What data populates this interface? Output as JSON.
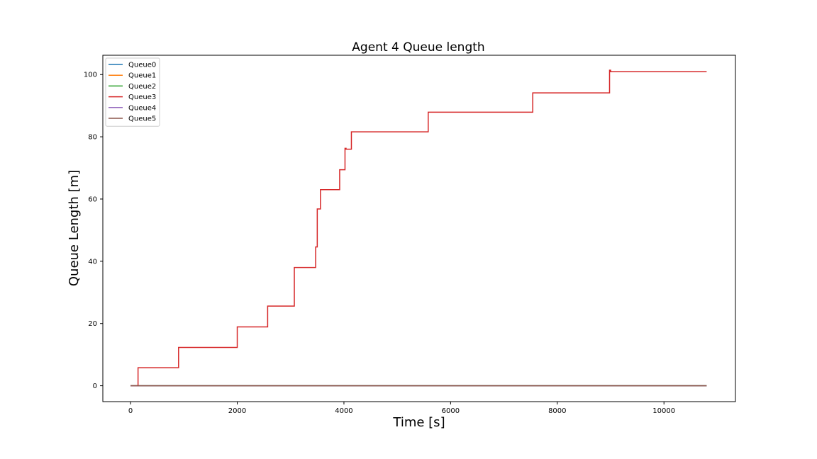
{
  "chart_data": {
    "type": "line",
    "title": "Agent 4 Queue length",
    "xlabel": "Time [s]",
    "ylabel": "Queue Length [m]",
    "xlim": [
      -520,
      11340
    ],
    "ylim": [
      -5.1,
      106.2
    ],
    "xticks": [
      0,
      2000,
      4000,
      6000,
      8000,
      10000
    ],
    "yticks": [
      0,
      20,
      40,
      60,
      80,
      100
    ],
    "grid": false,
    "legend_position": "top-left",
    "series": [
      {
        "name": "Queue0",
        "color": "#1f77b4",
        "x": [
          0,
          10800
        ],
        "y": [
          0,
          0
        ]
      },
      {
        "name": "Queue1",
        "color": "#ff7f0e",
        "x": [
          0,
          10800
        ],
        "y": [
          0,
          0
        ]
      },
      {
        "name": "Queue2",
        "color": "#2ca02c",
        "x": [
          0,
          10800
        ],
        "y": [
          0,
          0
        ]
      },
      {
        "name": "Queue3",
        "color": "#d62728",
        "x": [
          0,
          140,
          140,
          900,
          900,
          2000,
          2000,
          2570,
          2570,
          3070,
          3070,
          3470,
          3470,
          3500,
          3500,
          3560,
          3560,
          3920,
          3920,
          4020,
          4020,
          4040,
          4040,
          4140,
          4140,
          5580,
          5580,
          7540,
          7540,
          8980,
          8980,
          9000,
          9000,
          10800
        ],
        "y": [
          0,
          0,
          5.8,
          5.8,
          12.3,
          12.3,
          18.9,
          18.9,
          25.6,
          25.6,
          38.0,
          38.0,
          44.6,
          44.6,
          56.8,
          56.8,
          63.0,
          63.0,
          69.4,
          69.4,
          76.3,
          76.3,
          76.0,
          76.0,
          81.6,
          81.6,
          87.9,
          87.9,
          94.1,
          94.1,
          101.4,
          101.4,
          100.9,
          100.9
        ]
      },
      {
        "name": "Queue4",
        "color": "#9467bd",
        "x": [
          0,
          10800
        ],
        "y": [
          0,
          0
        ]
      },
      {
        "name": "Queue5",
        "color": "#8c564b",
        "x": [
          0,
          10800
        ],
        "y": [
          0,
          0
        ]
      }
    ]
  }
}
